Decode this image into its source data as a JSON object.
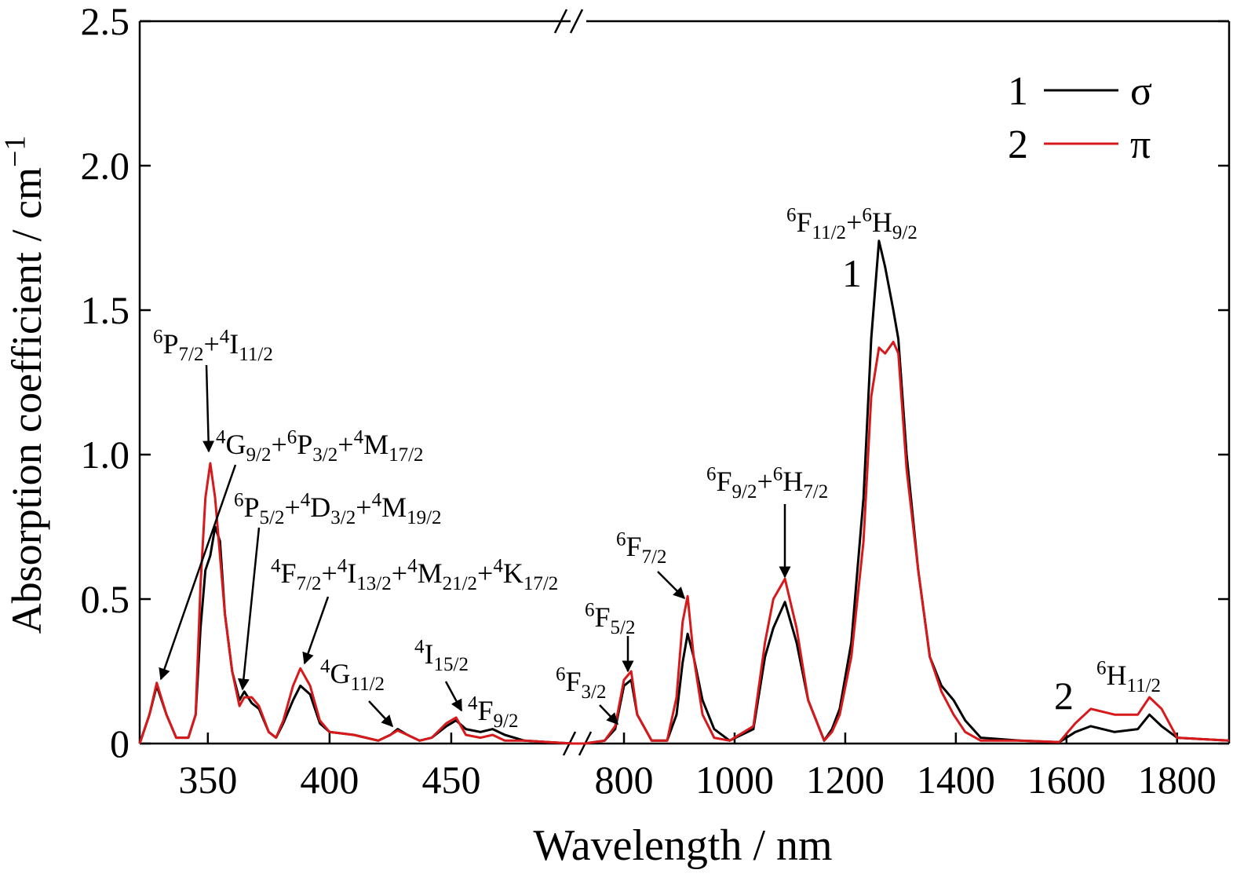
{
  "chart_data": {
    "type": "line",
    "xlabel": "Wavelength / nm",
    "ylabel": {
      "parts": [
        {
          "text": "Absorption coefficient / cm"
        },
        {
          "sup": "−1"
        }
      ]
    },
    "x_segments": [
      {
        "xlim": [
          322,
          500
        ],
        "xticks": [
          350,
          400,
          450
        ]
      },
      {
        "xlim": [
          729,
          1894
        ],
        "xticks": [
          800,
          1000,
          1200,
          1400,
          1600,
          1800
        ]
      }
    ],
    "ylim": [
      0,
      2.5
    ],
    "yticks": [
      0,
      0.5,
      {
        "value": 1,
        "label": "1.0"
      },
      1.5,
      {
        "value": 2,
        "label": "2.0"
      },
      2.5
    ],
    "legend": "upper right",
    "x": [
      322,
      326,
      329,
      333,
      337,
      342,
      345,
      347,
      349,
      351,
      353,
      355,
      357,
      360,
      363,
      365,
      368,
      371,
      375,
      378,
      381,
      385,
      388,
      392,
      396,
      400,
      410,
      420,
      425,
      428,
      432,
      437,
      442,
      448,
      452,
      456,
      462,
      467,
      472,
      480,
      490,
      500,
      729,
      765,
      784,
      800,
      813,
      824,
      850,
      878,
      895,
      906,
      915,
      926,
      942,
      963,
      991,
      1034,
      1055,
      1070,
      1091,
      1112,
      1133,
      1162,
      1176,
      1190,
      1211,
      1233,
      1247,
      1261,
      1272,
      1287,
      1296,
      1311,
      1332,
      1353,
      1374,
      1396,
      1417,
      1445,
      1516,
      1587,
      1616,
      1644,
      1687,
      1729,
      1750,
      1772,
      1800,
      1894
    ],
    "series": [
      {
        "name": "σ",
        "label": "1",
        "color": "#000000",
        "values": [
          0,
          0.1,
          0.2,
          0.1,
          0.02,
          0.02,
          0.1,
          0.4,
          0.6,
          0.65,
          0.75,
          0.7,
          0.45,
          0.25,
          0.15,
          0.18,
          0.14,
          0.12,
          0.04,
          0.02,
          0.07,
          0.15,
          0.2,
          0.17,
          0.07,
          0.04,
          0.03,
          0.01,
          0.03,
          0.05,
          0.03,
          0.01,
          0.02,
          0.06,
          0.08,
          0.05,
          0.04,
          0.05,
          0.03,
          0.01,
          0.005,
          0,
          0,
          0.01,
          0.05,
          0.2,
          0.22,
          0.1,
          0.01,
          0.01,
          0.1,
          0.28,
          0.38,
          0.3,
          0.15,
          0.05,
          0.01,
          0.05,
          0.3,
          0.4,
          0.49,
          0.35,
          0.15,
          0.01,
          0.05,
          0.12,
          0.35,
          0.85,
          1.4,
          1.74,
          1.65,
          1.5,
          1.4,
          1.0,
          0.6,
          0.3,
          0.2,
          0.15,
          0.08,
          0.02,
          0.01,
          0.005,
          0.04,
          0.06,
          0.04,
          0.05,
          0.1,
          0.06,
          0.02,
          0.01
        ]
      },
      {
        "name": "π",
        "label": "2",
        "color": "#d7191c",
        "values": [
          0,
          0.1,
          0.21,
          0.1,
          0.02,
          0.02,
          0.1,
          0.55,
          0.85,
          0.97,
          0.85,
          0.65,
          0.45,
          0.25,
          0.13,
          0.16,
          0.16,
          0.13,
          0.04,
          0.02,
          0.08,
          0.2,
          0.26,
          0.2,
          0.08,
          0.04,
          0.03,
          0.01,
          0.03,
          0.045,
          0.03,
          0.01,
          0.02,
          0.07,
          0.09,
          0.03,
          0.02,
          0.03,
          0.01,
          0.01,
          0.005,
          0,
          0,
          0.01,
          0.06,
          0.22,
          0.25,
          0.1,
          0.01,
          0.01,
          0.16,
          0.42,
          0.51,
          0.3,
          0.1,
          0.02,
          0.01,
          0.06,
          0.35,
          0.5,
          0.57,
          0.4,
          0.15,
          0.01,
          0.04,
          0.1,
          0.3,
          0.7,
          1.2,
          1.37,
          1.35,
          1.39,
          1.35,
          0.95,
          0.6,
          0.3,
          0.18,
          0.1,
          0.04,
          0.01,
          0.01,
          0.005,
          0.07,
          0.12,
          0.1,
          0.1,
          0.16,
          0.12,
          0.02,
          0.01
        ]
      }
    ],
    "annotations": [
      {
        "parts": [
          {
            "sup": "6"
          },
          {
            "text": "P"
          },
          {
            "sub": "7/2"
          },
          {
            "text": "+"
          },
          {
            "sup": "4"
          },
          {
            "text": "I"
          },
          {
            "sub": "11/2"
          }
        ]
      },
      {
        "parts": [
          {
            "sup": "4"
          },
          {
            "text": "G"
          },
          {
            "sub": "9/2"
          },
          {
            "text": "+"
          },
          {
            "sup": "6"
          },
          {
            "text": "P"
          },
          {
            "sub": "3/2"
          },
          {
            "text": "+"
          },
          {
            "sup": "4"
          },
          {
            "text": "M"
          },
          {
            "sub": "17/2"
          }
        ]
      },
      {
        "parts": [
          {
            "sup": "6"
          },
          {
            "text": "P"
          },
          {
            "sub": "5/2"
          },
          {
            "text": "+"
          },
          {
            "sup": "4"
          },
          {
            "text": "D"
          },
          {
            "sub": "3/2"
          },
          {
            "text": "+"
          },
          {
            "sup": "4"
          },
          {
            "text": "M"
          },
          {
            "sub": "19/2"
          }
        ]
      },
      {
        "parts": [
          {
            "sup": "4"
          },
          {
            "text": "F"
          },
          {
            "sub": "7/2"
          },
          {
            "text": "+"
          },
          {
            "sup": "4"
          },
          {
            "text": "I"
          },
          {
            "sub": "13/2"
          },
          {
            "text": "+"
          },
          {
            "sup": "4"
          },
          {
            "text": "M"
          },
          {
            "sub": "21/2"
          },
          {
            "text": "+"
          },
          {
            "sup": "4"
          },
          {
            "text": "K"
          },
          {
            "sub": "17/2"
          }
        ]
      },
      {
        "parts": [
          {
            "sup": "4"
          },
          {
            "text": "G"
          },
          {
            "sub": "11/2"
          }
        ]
      },
      {
        "parts": [
          {
            "sup": "4"
          },
          {
            "text": "I"
          },
          {
            "sub": "15/2"
          }
        ]
      },
      {
        "parts": [
          {
            "sup": "4"
          },
          {
            "text": "F"
          },
          {
            "sub": "9/2"
          }
        ]
      },
      {
        "parts": [
          {
            "sup": "6"
          },
          {
            "text": "F"
          },
          {
            "sub": "3/2"
          }
        ]
      },
      {
        "parts": [
          {
            "sup": "6"
          },
          {
            "text": "F"
          },
          {
            "sub": "5/2"
          }
        ]
      },
      {
        "parts": [
          {
            "sup": "6"
          },
          {
            "text": "F"
          },
          {
            "sub": "7/2"
          }
        ]
      },
      {
        "parts": [
          {
            "sup": "6"
          },
          {
            "text": "F"
          },
          {
            "sub": "9/2"
          },
          {
            "text": "+"
          },
          {
            "sup": "6"
          },
          {
            "text": "H"
          },
          {
            "sub": "7/2"
          }
        ]
      },
      {
        "parts": [
          {
            "sup": "6"
          },
          {
            "text": "F"
          },
          {
            "sub": "11/2"
          },
          {
            "text": "+"
          },
          {
            "sup": "6"
          },
          {
            "text": "H"
          },
          {
            "sub": "9/2"
          }
        ]
      },
      {
        "parts": [
          {
            "sup": "6"
          },
          {
            "text": "H"
          },
          {
            "sub": "11/2"
          }
        ]
      }
    ]
  }
}
